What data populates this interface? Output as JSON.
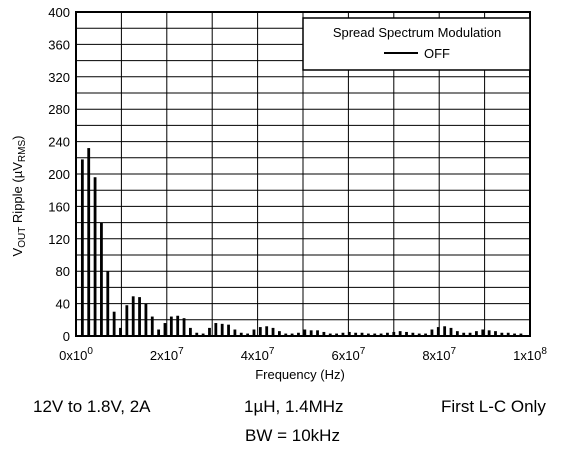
{
  "chart_data": {
    "type": "bar",
    "xlabel": "Frequency (Hz)",
    "ylabel_main": "V",
    "ylabel_sub1": "OUT",
    "ylabel_mid": " Ripple (µV",
    "ylabel_sub2": "RMS",
    "ylabel_end": ")",
    "xlim": [
      0,
      100000000
    ],
    "ylim": [
      0,
      400
    ],
    "grid": true,
    "yticks": [
      0,
      40,
      80,
      120,
      160,
      200,
      240,
      280,
      320,
      360,
      400
    ],
    "xticks": [
      {
        "value": 0,
        "base": "0x10",
        "exp": "0"
      },
      {
        "value": 20000000,
        "base": "2x10",
        "exp": "7"
      },
      {
        "value": 40000000,
        "base": "4x10",
        "exp": "7"
      },
      {
        "value": 60000000,
        "base": "6x10",
        "exp": "7"
      },
      {
        "value": 80000000,
        "base": "8x10",
        "exp": "7"
      },
      {
        "value": 100000000,
        "base": "1x10",
        "exp": "8"
      }
    ],
    "legend": {
      "title": "Spread Spectrum Modulation",
      "entry": "OFF",
      "placement": "top-right"
    },
    "series": [
      {
        "name": "OFF",
        "points": [
          [
            1400000,
            218
          ],
          [
            2800000,
            232
          ],
          [
            4200000,
            196
          ],
          [
            5600000,
            140
          ],
          [
            7000000,
            80
          ],
          [
            8400000,
            30
          ],
          [
            9800000,
            10
          ],
          [
            11200000,
            38
          ],
          [
            12600000,
            49
          ],
          [
            14000000,
            48
          ],
          [
            15400000,
            40
          ],
          [
            16800000,
            24
          ],
          [
            18200000,
            8
          ],
          [
            19600000,
            16
          ],
          [
            21000000,
            24
          ],
          [
            22400000,
            25
          ],
          [
            23800000,
            22
          ],
          [
            25200000,
            10
          ],
          [
            26600000,
            4
          ],
          [
            28000000,
            3
          ],
          [
            29400000,
            10
          ],
          [
            30800000,
            16
          ],
          [
            32200000,
            15
          ],
          [
            33600000,
            14
          ],
          [
            35000000,
            8
          ],
          [
            36400000,
            4
          ],
          [
            37800000,
            3
          ],
          [
            39200000,
            8
          ],
          [
            40600000,
            11
          ],
          [
            42000000,
            12
          ],
          [
            43400000,
            10
          ],
          [
            44800000,
            6
          ],
          [
            46200000,
            3
          ],
          [
            47600000,
            3
          ],
          [
            49000000,
            4
          ],
          [
            50400000,
            8
          ],
          [
            51800000,
            7
          ],
          [
            53200000,
            7
          ],
          [
            54600000,
            5
          ],
          [
            56000000,
            3
          ],
          [
            57400000,
            3
          ],
          [
            58800000,
            4
          ],
          [
            60200000,
            5
          ],
          [
            61600000,
            4
          ],
          [
            63000000,
            4
          ],
          [
            64400000,
            3
          ],
          [
            65800000,
            3
          ],
          [
            67200000,
            3
          ],
          [
            68600000,
            4
          ],
          [
            70000000,
            5
          ],
          [
            71400000,
            6
          ],
          [
            72800000,
            5
          ],
          [
            74200000,
            4
          ],
          [
            75600000,
            3
          ],
          [
            77000000,
            3
          ],
          [
            78400000,
            8
          ],
          [
            79800000,
            11
          ],
          [
            81200000,
            12
          ],
          [
            82600000,
            10
          ],
          [
            84000000,
            6
          ],
          [
            85400000,
            4
          ],
          [
            86800000,
            4
          ],
          [
            88200000,
            6
          ],
          [
            89600000,
            8
          ],
          [
            91000000,
            7
          ],
          [
            92400000,
            6
          ],
          [
            93800000,
            4
          ],
          [
            95200000,
            4
          ],
          [
            96600000,
            3
          ],
          [
            98000000,
            3
          ]
        ]
      }
    ]
  },
  "captions": {
    "left": "12V to 1.8V, 2A",
    "center": "1µH, 1.4MHz",
    "right": "First L-C Only",
    "bottom": "BW = 10kHz"
  }
}
